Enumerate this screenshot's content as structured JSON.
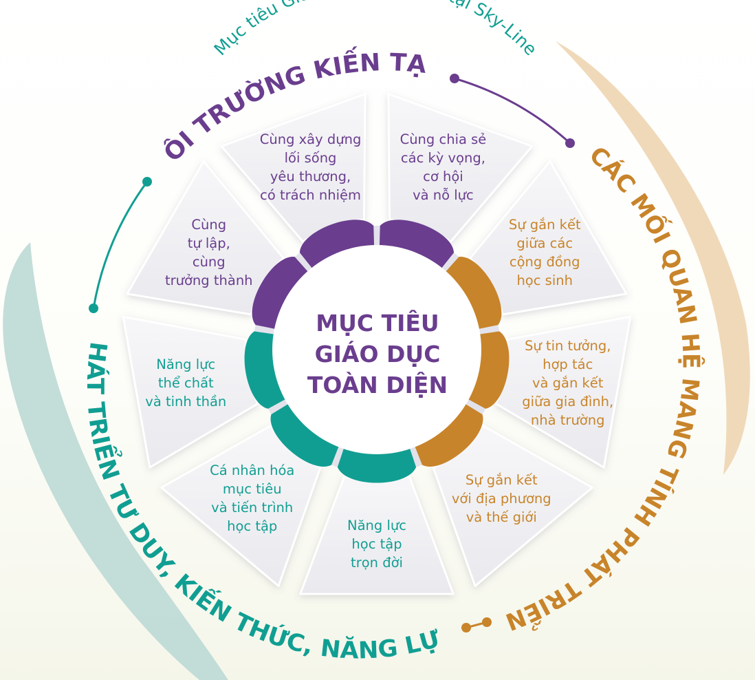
{
  "diagram": {
    "subtitle": "Mục tiêu Giáo dục toàn diện tại Sky-Line",
    "center_title": "MỤC TIÊU\nGIÁO DỤC\nTOÀN DIỆN",
    "groups": [
      {
        "id": "environment",
        "label": "MÔI TRƯỜNG KIẾN TẠO",
        "color": "#6a3d8e"
      },
      {
        "id": "relations",
        "label": "CÁC MỐI QUAN HỆ MANG TÍNH PHÁT TRIỂN",
        "color": "#c8842a"
      },
      {
        "id": "thinking",
        "label": "PHÁT TRIỂN TƯ DUY, KIẾN THỨC, NĂNG LỰC",
        "color": "#119e92"
      }
    ],
    "segments": [
      {
        "text": "Cùng chia sẻ\ncác kỳ vọng,\ncơ hội\nvà nỗ lực",
        "group": "environment"
      },
      {
        "text": "Sự gắn kết\ngiữa các\ncộng đồng\nhọc sinh",
        "group": "relations"
      },
      {
        "text": "Sự tin tưởng,\nhợp tác\nvà gắn kết\ngiữa gia đình,\nnhà trường",
        "group": "relations"
      },
      {
        "text": "Sự gắn kết\nvới địa phương\nvà thế giới",
        "group": "relations"
      },
      {
        "text": "Năng lực\nhọc tập\ntrọn đời",
        "group": "thinking"
      },
      {
        "text": "Cá nhân hóa\nmục tiêu\nvà tiến trình\nhọc tập",
        "group": "thinking"
      },
      {
        "text": "Năng lực\nthể chất\nvà tinh thần",
        "group": "thinking"
      },
      {
        "text": "Cùng\ntự lập,\ncùng\ntrưởng thành",
        "group": "environment"
      },
      {
        "text": "Cùng xây dựng\nlối sống\nyêu thương,\ncó trách nhiệm",
        "group": "environment"
      }
    ],
    "colors": {
      "center_text": "#6a3d8e",
      "tile": "#f1f1f4",
      "tile_edge": "#ffffff",
      "ring_track": "#d9d7e6",
      "arc_teal": "#bcd9d5",
      "arc_beige": "#efd7b5"
    }
  }
}
